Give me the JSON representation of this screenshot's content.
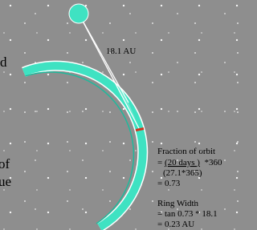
{
  "distance_label": "18.1 AU",
  "fraction": {
    "title": "Fraction of orbit",
    "numerator_prefix": "= ",
    "numerator": "(20 days )",
    "numerator_suffix": "  *360",
    "denominator": "(27.1*365)",
    "result": "= 0.73"
  },
  "ring_width": {
    "title": "Ring Width",
    "formula": "= tan 0.73 * 18.1",
    "result": "= 0.23 AU"
  },
  "cut_text": [
    "d",
    "of",
    "ue"
  ]
}
